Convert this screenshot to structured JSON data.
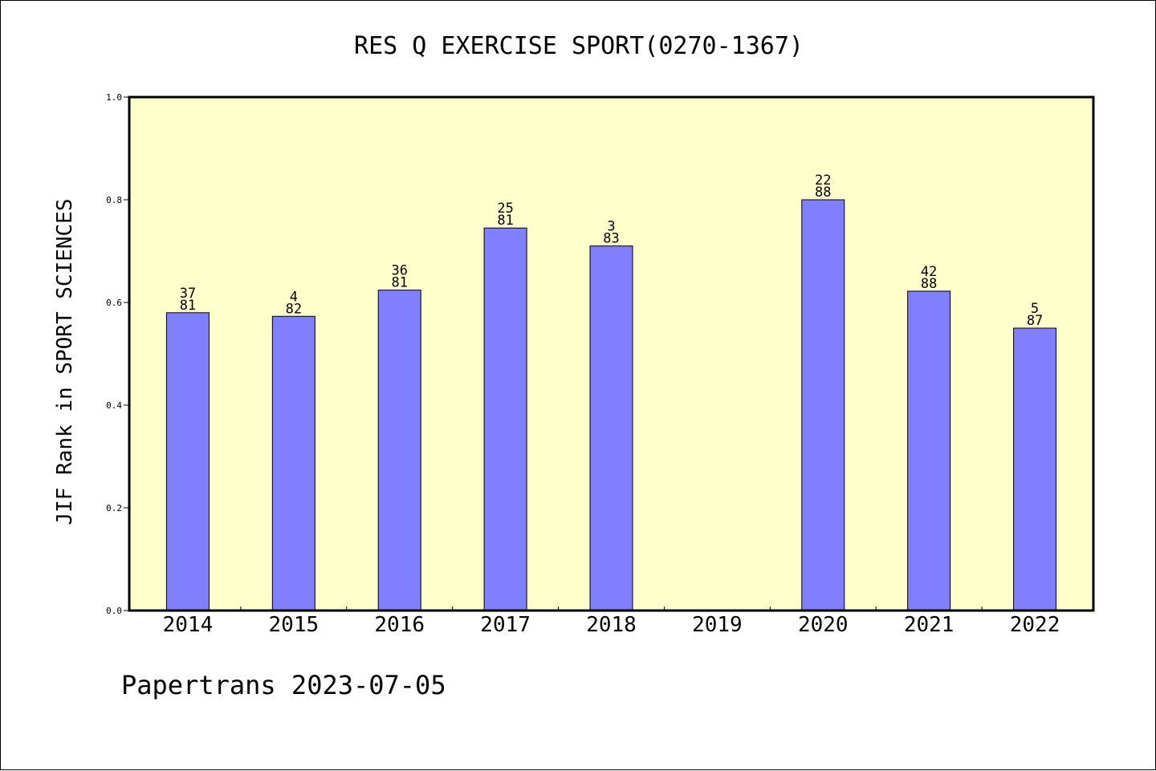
{
  "chart_data": {
    "type": "bar",
    "title": "RES Q EXERCISE SPORT(0270-1367)",
    "xlabel": "",
    "ylabel": "JIF Rank in SPORT SCIENCES",
    "categories": [
      "2014",
      "2015",
      "2016",
      "2017",
      "2018",
      "2019",
      "2020",
      "2021",
      "2022"
    ],
    "values": [
      0.58,
      0.573,
      0.624,
      0.745,
      0.71,
      null,
      0.8,
      0.622,
      0.55
    ],
    "rank_labels": [
      {
        "top": "37",
        "bottom": "81"
      },
      {
        "top": "4",
        "bottom": "82"
      },
      {
        "top": "36",
        "bottom": "81"
      },
      {
        "top": "25",
        "bottom": "81"
      },
      {
        "top": "3",
        "bottom": "83"
      },
      null,
      {
        "top": "22",
        "bottom": "88"
      },
      {
        "top": "42",
        "bottom": "88"
      },
      {
        "top": "5",
        "bottom": "87"
      }
    ],
    "ylim": [
      0,
      1.0
    ],
    "yticks": [
      "0.0",
      "0.2",
      "0.4",
      "0.6",
      "0.8",
      "1.0"
    ],
    "grid": false,
    "legend": "none",
    "colors": {
      "bar_fill": "#8080ff",
      "bar_stroke": "#000000",
      "plot_background": "#ffffcc"
    }
  },
  "footer": "Papertrans 2023-07-05"
}
